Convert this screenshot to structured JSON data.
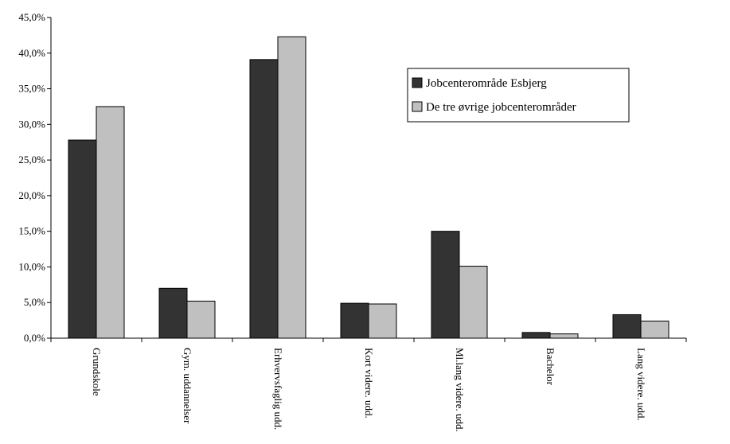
{
  "chart_data": {
    "type": "bar",
    "categories": [
      "Grundskole",
      "Gym. uddannelser",
      "Erhvervsfaglig udd.",
      "Kort videre. udd.",
      "Ml.lang videre. udd.",
      "Bachelor",
      "Lang videre. udd."
    ],
    "series": [
      {
        "name": "Jobcenterområde Esbjerg",
        "color": "#333333",
        "values": [
          27.8,
          7.0,
          39.1,
          4.9,
          15.0,
          0.8,
          3.3
        ]
      },
      {
        "name": "De tre øvrige jobcenterområder",
        "color": "#c0c0c0",
        "values": [
          32.5,
          5.2,
          42.3,
          4.8,
          10.1,
          0.6,
          2.4
        ]
      }
    ],
    "ylim": [
      0,
      45
    ],
    "yticks": [
      "0,0%",
      "5,0%",
      "10,0%",
      "15,0%",
      "20,0%",
      "25,0%",
      "30,0%",
      "35,0%",
      "40,0%",
      "45,0%"
    ],
    "ytick_values": [
      0,
      5,
      10,
      15,
      20,
      25,
      30,
      35,
      40,
      45
    ],
    "title": "",
    "xlabel": "",
    "ylabel": "",
    "grid": false,
    "legend_position": "top-right"
  }
}
